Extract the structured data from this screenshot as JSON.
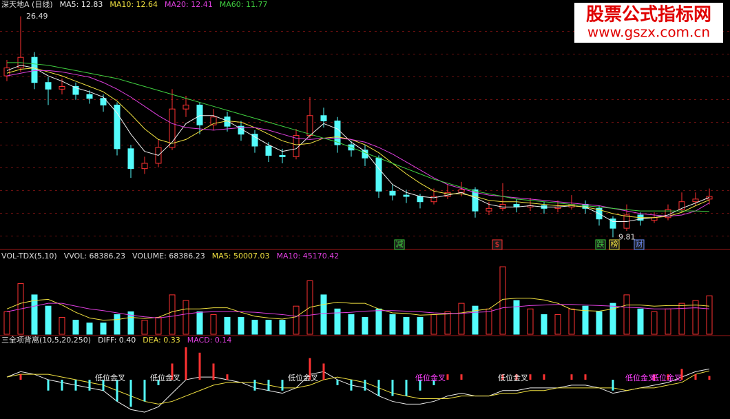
{
  "chart_data": [
    {
      "type": "candlestick",
      "title": "深天地A (日线)",
      "title_color": "#dddddd",
      "up_color": "#ff3232",
      "down_color": "#54fcfc",
      "ylim": [
        9.0,
        27.0
      ],
      "open": [
        22.0,
        22.6,
        23.4,
        21.5,
        21.0,
        21.2,
        20.6,
        20.3,
        19.8,
        16.5,
        15.0,
        15.4,
        16.6,
        19.5,
        19.8,
        18.3,
        18.9,
        18.2,
        17.6,
        16.7,
        16.0,
        15.9,
        17.5,
        19.0,
        18.6,
        16.8,
        16.4,
        15.8,
        13.3,
        13.0,
        12.9,
        12.5,
        12.9,
        13.2,
        13.4,
        11.8,
        12.0,
        12.3,
        12.1,
        12.2,
        12.0,
        12.1,
        12.3,
        12.0,
        11.2,
        10.5,
        11.5,
        11.1,
        11.3,
        11.9,
        12.5,
        12.7
      ],
      "high": [
        23.2,
        26.49,
        23.8,
        21.9,
        21.8,
        21.5,
        20.9,
        20.6,
        20.0,
        16.8,
        15.9,
        17.2,
        21.0,
        20.5,
        20.0,
        19.5,
        19.3,
        18.6,
        17.9,
        17.0,
        16.5,
        18.0,
        20.4,
        19.6,
        18.9,
        17.1,
        16.8,
        16.0,
        13.8,
        13.4,
        13.1,
        13.5,
        13.8,
        14.0,
        13.6,
        12.5,
        13.9,
        12.7,
        12.8,
        12.5,
        12.6,
        13.0,
        12.6,
        12.2,
        11.4,
        12.3,
        11.7,
        11.7,
        12.3,
        13.2,
        13.2,
        13.5
      ],
      "low": [
        21.6,
        22.3,
        21.0,
        19.8,
        20.6,
        20.2,
        19.9,
        19.3,
        16.0,
        14.3,
        14.6,
        15.1,
        16.4,
        18.9,
        17.6,
        17.9,
        17.8,
        17.1,
        16.2,
        15.5,
        15.4,
        15.7,
        17.3,
        18.1,
        16.2,
        15.9,
        15.2,
        12.8,
        12.6,
        12.4,
        12.0,
        12.3,
        12.7,
        12.9,
        11.3,
        11.5,
        11.8,
        11.7,
        11.8,
        11.6,
        11.7,
        11.9,
        11.6,
        10.7,
        9.81,
        10.3,
        10.7,
        10.9,
        11.1,
        11.7,
        12.2,
        12.3
      ],
      "close": [
        22.6,
        23.4,
        21.5,
        21.0,
        21.2,
        20.6,
        20.3,
        19.8,
        16.5,
        15.0,
        15.4,
        16.6,
        19.5,
        19.8,
        18.3,
        18.9,
        18.2,
        17.6,
        16.7,
        16.0,
        15.9,
        17.5,
        19.0,
        18.6,
        16.8,
        16.4,
        15.8,
        13.3,
        13.0,
        12.9,
        12.5,
        12.9,
        13.2,
        13.4,
        11.8,
        12.0,
        12.3,
        12.1,
        12.2,
        12.0,
        12.1,
        12.3,
        12.0,
        11.2,
        10.5,
        11.5,
        11.1,
        11.3,
        11.9,
        12.5,
        12.7,
        12.9
      ],
      "series": [
        {
          "name": "MA5: 12.83",
          "color": "#eeeeee",
          "values": [
            22.4,
            22.8,
            22.6,
            22.0,
            21.6,
            21.1,
            20.8,
            20.4,
            19.2,
            17.6,
            16.3,
            16.0,
            17.0,
            18.4,
            19.0,
            19.0,
            18.6,
            18.0,
            17.4,
            16.8,
            16.3,
            16.5,
            17.5,
            18.4,
            18.0,
            17.0,
            16.3,
            15.0,
            13.8,
            13.2,
            12.9,
            12.8,
            13.0,
            13.2,
            12.8,
            12.3,
            12.1,
            12.1,
            12.2,
            12.1,
            12.1,
            12.2,
            12.1,
            11.6,
            11.0,
            11.0,
            11.2,
            11.3,
            11.5,
            12.0,
            12.4,
            12.83
          ]
        },
        {
          "name": "MA10: 12.64",
          "color": "#f0e040",
          "values": [
            22.2,
            22.5,
            22.6,
            22.3,
            22.0,
            21.6,
            21.2,
            20.8,
            20.1,
            19.1,
            18.0,
            17.2,
            16.9,
            17.2,
            17.8,
            18.4,
            18.6,
            18.5,
            18.1,
            17.6,
            17.1,
            16.8,
            16.9,
            17.3,
            17.4,
            17.2,
            16.8,
            16.2,
            15.4,
            14.6,
            13.9,
            13.3,
            13.1,
            13.1,
            12.9,
            12.6,
            12.5,
            12.5,
            12.4,
            12.3,
            12.2,
            12.2,
            12.1,
            11.9,
            11.6,
            11.4,
            11.3,
            11.3,
            11.4,
            11.7,
            12.2,
            12.64
          ]
        },
        {
          "name": "MA20: 12.41",
          "color": "#e040e0",
          "values": [
            22.0,
            22.2,
            22.4,
            22.4,
            22.3,
            22.1,
            21.9,
            21.5,
            21.0,
            20.4,
            19.7,
            19.0,
            18.4,
            18.1,
            18.0,
            17.9,
            18.0,
            18.1,
            18.1,
            17.9,
            17.6,
            17.3,
            17.2,
            17.3,
            17.3,
            17.2,
            17.0,
            16.6,
            16.1,
            15.5,
            14.9,
            14.3,
            13.8,
            13.5,
            13.2,
            13.0,
            12.9,
            12.8,
            12.7,
            12.6,
            12.5,
            12.4,
            12.3,
            12.2,
            12.0,
            11.8,
            11.6,
            11.5,
            11.4,
            11.5,
            11.8,
            12.41
          ]
        },
        {
          "name": "MA60: 11.77",
          "color": "#40d040",
          "values": [
            23.0,
            23.0,
            22.9,
            22.8,
            22.6,
            22.4,
            22.2,
            22.0,
            21.8,
            21.5,
            21.2,
            20.9,
            20.6,
            20.3,
            20.0,
            19.7,
            19.4,
            19.1,
            18.8,
            18.5,
            18.2,
            17.9,
            17.6,
            17.3,
            17.0,
            16.6,
            16.2,
            15.8,
            15.4,
            15.0,
            14.6,
            14.2,
            13.9,
            13.6,
            13.3,
            13.1,
            12.9,
            12.7,
            12.6,
            12.5,
            12.4,
            12.3,
            12.2,
            12.1,
            12.0,
            11.9,
            11.8,
            11.8,
            11.8,
            11.8,
            11.8,
            11.77
          ]
        }
      ],
      "markers": [
        {
          "text": "减",
          "color": "#40d040"
        },
        {
          "text": "$",
          "color": "#ff3232"
        },
        {
          "text": "跌",
          "color": "#40d040"
        },
        {
          "text": "榜",
          "color": "#f0e040"
        },
        {
          "text": "财",
          "color": "#7090ff"
        }
      ]
    },
    {
      "type": "volume",
      "title": "VOL-TDX(5,10)",
      "subtitle": "VVOL: 68386.23",
      "title_color": "#dddddd",
      "up_color": "#ff3232",
      "down_color": "#54fcfc",
      "ylim": [
        0,
        125000
      ],
      "series": [
        {
          "name": "VOLUME: 68386.23",
          "color": "#dddddd",
          "values": [
            40000,
            90000,
            70000,
            50000,
            30000,
            25000,
            20000,
            20000,
            35000,
            40000,
            25000,
            30000,
            70000,
            60000,
            40000,
            35000,
            30000,
            30000,
            25000,
            25000,
            25000,
            50000,
            95000,
            70000,
            45000,
            35000,
            30000,
            45000,
            35000,
            30000,
            30000,
            35000,
            40000,
            55000,
            50000,
            45000,
            120000,
            60000,
            45000,
            35000,
            35000,
            45000,
            50000,
            40000,
            55000,
            70000,
            45000,
            40000,
            45000,
            55000,
            60000,
            68386.23
          ]
        },
        {
          "name": "MA5: 50007.03",
          "color": "#f0e040",
          "values": [
            45000,
            55000,
            60000,
            62000,
            52000,
            39000,
            29000,
            25000,
            26000,
            30000,
            28000,
            30000,
            40000,
            45000,
            45000,
            47000,
            47000,
            39000,
            32000,
            29000,
            27000,
            31000,
            48000,
            53000,
            57000,
            55000,
            55000,
            45000,
            38000,
            37000,
            34000,
            35000,
            36000,
            38000,
            42000,
            45000,
            62000,
            64000,
            64000,
            61000,
            55000,
            44000,
            42000,
            41000,
            45000,
            52000,
            52000,
            50000,
            51000,
            51000,
            52000,
            50007.03
          ]
        },
        {
          "name": "MA10: 45170.42",
          "color": "#e040e0",
          "values": [
            40000,
            45000,
            50000,
            55000,
            55000,
            50000,
            45000,
            42000,
            38000,
            34000,
            31000,
            29000,
            32000,
            36000,
            39000,
            40000,
            40000,
            40000,
            39000,
            37000,
            35000,
            32000,
            34000,
            37000,
            38000,
            39000,
            41000,
            42000,
            42000,
            41000,
            40000,
            38000,
            37000,
            37000,
            39000,
            40000,
            47000,
            49000,
            51000,
            52000,
            53000,
            53000,
            52000,
            51000,
            50000,
            48000,
            47000,
            45000,
            45000,
            46000,
            47000,
            45170.42
          ]
        }
      ]
    },
    {
      "type": "macd",
      "title": "三全项背离(10,5,20,250)",
      "title_color": "#dddddd",
      "up_color": "#ff3232",
      "down_color": "#54fcfc",
      "ylim": [
        -1.4,
        1.3
      ],
      "series": [
        {
          "name": "DIFF: 0.40",
          "color": "#eeeeee",
          "values": [
            0.1,
            0.3,
            0.2,
            0.0,
            -0.1,
            -0.2,
            -0.3,
            -0.4,
            -0.8,
            -1.1,
            -1.2,
            -1.0,
            -0.5,
            0.0,
            0.1,
            0.1,
            0.0,
            -0.1,
            -0.3,
            -0.4,
            -0.5,
            -0.3,
            0.2,
            0.3,
            0.0,
            -0.2,
            -0.3,
            -0.6,
            -0.8,
            -0.9,
            -0.9,
            -0.8,
            -0.6,
            -0.5,
            -0.6,
            -0.6,
            -0.4,
            -0.4,
            -0.3,
            -0.3,
            -0.3,
            -0.2,
            -0.2,
            -0.3,
            -0.5,
            -0.4,
            -0.3,
            -0.2,
            -0.1,
            0.1,
            0.3,
            0.4
          ]
        },
        {
          "name": "DEA: 0.33",
          "color": "#f0e040",
          "values": [
            0.1,
            0.2,
            0.2,
            0.2,
            0.1,
            0.0,
            -0.1,
            -0.2,
            -0.4,
            -0.6,
            -0.8,
            -0.9,
            -0.8,
            -0.6,
            -0.4,
            -0.2,
            -0.1,
            -0.1,
            -0.1,
            -0.2,
            -0.3,
            -0.3,
            -0.2,
            0.0,
            0.1,
            0.0,
            -0.1,
            -0.3,
            -0.5,
            -0.6,
            -0.7,
            -0.7,
            -0.7,
            -0.6,
            -0.6,
            -0.6,
            -0.5,
            -0.5,
            -0.4,
            -0.4,
            -0.3,
            -0.3,
            -0.3,
            -0.3,
            -0.3,
            -0.4,
            -0.3,
            -0.3,
            -0.2,
            -0.1,
            0.2,
            0.33
          ]
        },
        {
          "name": "MACD: 0.14",
          "color": "#e040e0",
          "hist": true,
          "values": [
            0.0,
            0.2,
            0.0,
            -0.4,
            -0.4,
            -0.4,
            -0.4,
            -0.4,
            -0.8,
            -1.0,
            -0.8,
            -0.2,
            0.6,
            1.2,
            1.0,
            0.6,
            0.2,
            0.0,
            -0.4,
            -0.4,
            -0.4,
            0.0,
            0.8,
            0.6,
            -0.2,
            -0.4,
            -0.4,
            -0.6,
            -0.6,
            -0.6,
            -0.4,
            -0.2,
            0.2,
            0.2,
            0.0,
            0.0,
            0.2,
            0.2,
            0.2,
            0.2,
            0.0,
            0.2,
            0.2,
            0.0,
            -0.4,
            0.0,
            0.0,
            0.2,
            0.2,
            0.4,
            0.2,
            0.14
          ]
        }
      ],
      "annotations": [
        {
          "text": "低位金叉",
          "color": "#eeeeee"
        },
        {
          "text": "低位金叉",
          "color": "#eeeeee"
        },
        {
          "text": "低位金叉",
          "color": "#eeeeee"
        },
        {
          "text": "低位金叉",
          "color": "#ff40ff"
        },
        {
          "text": "低位金叉",
          "color": "#eeeeee"
        },
        {
          "text": "低位金叉",
          "color": "#ff40ff"
        },
        {
          "text": "低位金叉",
          "color": "#ff40ff"
        }
      ]
    }
  ],
  "watermark": {
    "title": "股票公式指标网",
    "url": "www.gszx.com.cn"
  }
}
